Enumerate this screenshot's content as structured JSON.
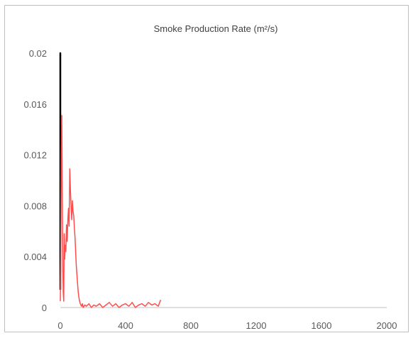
{
  "chart_data": {
    "type": "line",
    "title": "Smoke Production Rate (m²/s)",
    "xlabel": "",
    "ylabel": "",
    "xlim": [
      0,
      2000
    ],
    "ylim": [
      0,
      0.02
    ],
    "x_ticks": [
      0,
      400,
      800,
      1200,
      1600,
      2000
    ],
    "y_ticks": [
      0,
      0.004,
      0.008,
      0.012,
      0.016,
      0.02
    ],
    "x_tick_labels": [
      "0",
      "400",
      "800",
      "1200",
      "1600",
      "2000"
    ],
    "y_tick_labels": [
      "0",
      "0.004",
      "0.008",
      "0.012",
      "0.016",
      "0.02"
    ],
    "grid": false,
    "legend": "none",
    "series": [
      {
        "color": "#000000",
        "x": [
          0,
          0,
          0
        ],
        "y": [
          0.0019,
          0.02,
          0.0014
        ]
      },
      {
        "color": "#ff4d4d",
        "x": [
          0,
          3,
          6,
          9,
          12,
          15,
          18,
          21,
          24,
          27,
          30,
          34,
          38,
          42,
          46,
          50,
          54,
          58,
          62,
          66,
          70,
          74,
          78,
          82,
          86,
          90,
          94,
          98,
          102,
          106,
          110,
          114,
          118,
          122,
          126,
          130,
          135,
          140,
          150,
          160,
          175,
          190,
          205,
          220,
          240,
          260,
          280,
          300,
          320,
          340,
          360,
          380,
          400,
          420,
          440,
          460,
          480,
          500,
          520,
          540,
          560,
          580,
          600,
          615
        ],
        "y": [
          0.0005,
          0.004,
          0.0122,
          0.0151,
          0.0085,
          0.0032,
          0.0012,
          0.0005,
          0.0058,
          0.0038,
          0.0049,
          0.0044,
          0.0065,
          0.0052,
          0.0069,
          0.0078,
          0.0064,
          0.0109,
          0.0092,
          0.0079,
          0.0069,
          0.0084,
          0.0076,
          0.0072,
          0.0063,
          0.0055,
          0.0044,
          0.0033,
          0.0025,
          0.0018,
          0.0012,
          0.0008,
          0.0005,
          0.0003,
          0.0002,
          0.0001,
          0.0003,
          0.0,
          0.0002,
          0.0001,
          0.0003,
          0.0,
          0.0002,
          0.0001,
          0.0003,
          0.0,
          0.0002,
          0.0004,
          0.0001,
          0.0003,
          0.0,
          0.0002,
          0.0003,
          0.0001,
          0.0004,
          0.0,
          0.0002,
          0.0003,
          0.0001,
          0.0004,
          0.0002,
          0.0003,
          0.0001,
          0.0006
        ]
      }
    ]
  }
}
